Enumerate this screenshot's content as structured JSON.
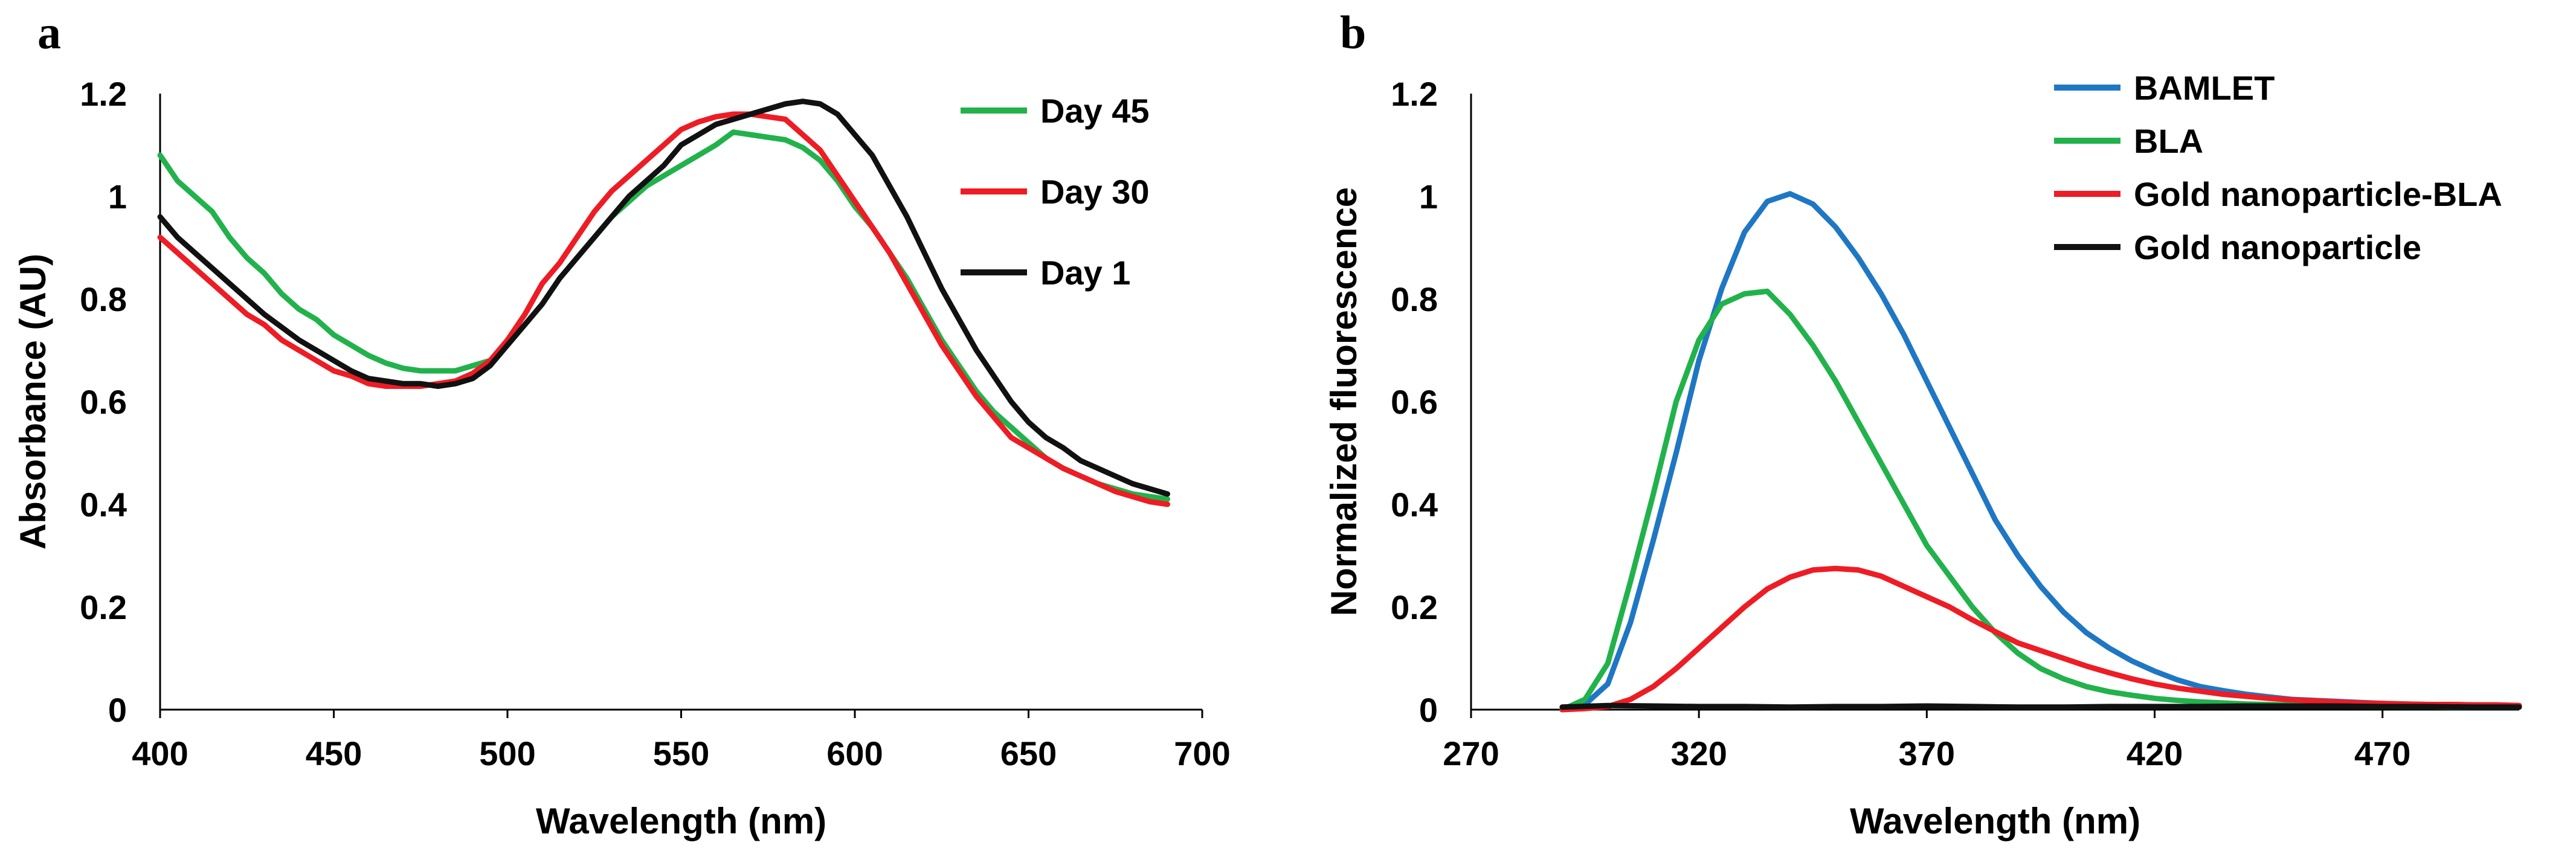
{
  "figure": {
    "panel_a_letter": "a",
    "panel_b_letter": "b"
  },
  "chart_data": [
    {
      "type": "line",
      "panel": "a",
      "title": "",
      "xlabel": "Wavelength (nm)",
      "ylabel": "Absorbance (AU)",
      "xlim": [
        400,
        700
      ],
      "ylim": [
        0,
        1.2
      ],
      "xticks": [
        400,
        450,
        500,
        550,
        600,
        650,
        700
      ],
      "yticks": [
        0,
        0.2,
        0.4,
        0.6,
        0.8,
        1,
        1.2
      ],
      "xtick_labels": [
        "400",
        "450",
        "500",
        "550",
        "600",
        "650",
        "700"
      ],
      "ytick_labels": [
        "0",
        "0.2",
        "0.4",
        "0.6",
        "0.8",
        "1",
        "1.2"
      ],
      "grid": false,
      "legend_position": "top-right",
      "series": [
        {
          "name": "Day 45",
          "color": "#22b24c",
          "x": [
            400,
            405,
            410,
            415,
            420,
            425,
            430,
            435,
            440,
            445,
            450,
            455,
            460,
            465,
            470,
            475,
            480,
            485,
            490,
            495,
            500,
            505,
            510,
            515,
            520,
            525,
            530,
            535,
            540,
            545,
            550,
            555,
            560,
            565,
            570,
            575,
            580,
            585,
            590,
            595,
            600,
            605,
            610,
            615,
            620,
            625,
            630,
            635,
            640,
            645,
            650,
            655,
            660,
            665,
            670,
            675,
            680,
            685,
            690
          ],
          "y": [
            1.08,
            1.03,
            1.0,
            0.97,
            0.92,
            0.88,
            0.85,
            0.81,
            0.78,
            0.76,
            0.73,
            0.71,
            0.69,
            0.675,
            0.665,
            0.66,
            0.66,
            0.66,
            0.67,
            0.68,
            0.71,
            0.75,
            0.79,
            0.84,
            0.88,
            0.92,
            0.96,
            0.99,
            1.02,
            1.04,
            1.06,
            1.08,
            1.1,
            1.125,
            1.12,
            1.115,
            1.11,
            1.095,
            1.07,
            1.03,
            0.98,
            0.94,
            0.89,
            0.84,
            0.78,
            0.72,
            0.67,
            0.62,
            0.58,
            0.55,
            0.52,
            0.49,
            0.47,
            0.455,
            0.44,
            0.43,
            0.42,
            0.415,
            0.41
          ]
        },
        {
          "name": "Day 30",
          "color": "#ee1c24",
          "x": [
            400,
            405,
            410,
            415,
            420,
            425,
            430,
            435,
            440,
            445,
            450,
            455,
            460,
            465,
            470,
            475,
            480,
            485,
            490,
            495,
            500,
            505,
            510,
            515,
            520,
            525,
            530,
            535,
            540,
            545,
            550,
            555,
            560,
            565,
            570,
            575,
            580,
            585,
            590,
            595,
            600,
            605,
            610,
            615,
            620,
            625,
            630,
            635,
            640,
            645,
            650,
            655,
            660,
            665,
            670,
            675,
            680,
            685,
            690
          ],
          "y": [
            0.92,
            0.89,
            0.86,
            0.83,
            0.8,
            0.77,
            0.75,
            0.72,
            0.7,
            0.68,
            0.66,
            0.65,
            0.635,
            0.63,
            0.63,
            0.63,
            0.635,
            0.64,
            0.655,
            0.68,
            0.72,
            0.77,
            0.83,
            0.87,
            0.92,
            0.97,
            1.01,
            1.04,
            1.07,
            1.1,
            1.13,
            1.145,
            1.155,
            1.16,
            1.16,
            1.155,
            1.15,
            1.12,
            1.09,
            1.04,
            0.99,
            0.94,
            0.89,
            0.83,
            0.77,
            0.71,
            0.66,
            0.61,
            0.57,
            0.53,
            0.51,
            0.49,
            0.47,
            0.455,
            0.44,
            0.425,
            0.415,
            0.405,
            0.4
          ]
        },
        {
          "name": "Day 1",
          "color": "#111111",
          "x": [
            400,
            405,
            410,
            415,
            420,
            425,
            430,
            435,
            440,
            445,
            450,
            455,
            460,
            465,
            470,
            475,
            480,
            485,
            490,
            495,
            500,
            505,
            510,
            515,
            520,
            525,
            530,
            535,
            540,
            545,
            550,
            555,
            560,
            565,
            570,
            575,
            580,
            585,
            590,
            595,
            600,
            605,
            610,
            615,
            620,
            625,
            630,
            635,
            640,
            645,
            650,
            655,
            660,
            665,
            670,
            675,
            680,
            685,
            690
          ],
          "y": [
            0.96,
            0.92,
            0.89,
            0.86,
            0.83,
            0.8,
            0.77,
            0.745,
            0.72,
            0.7,
            0.68,
            0.66,
            0.645,
            0.64,
            0.635,
            0.635,
            0.63,
            0.635,
            0.645,
            0.67,
            0.71,
            0.75,
            0.79,
            0.84,
            0.88,
            0.92,
            0.96,
            1.0,
            1.03,
            1.06,
            1.1,
            1.12,
            1.14,
            1.15,
            1.16,
            1.17,
            1.18,
            1.185,
            1.18,
            1.16,
            1.12,
            1.08,
            1.02,
            0.96,
            0.89,
            0.82,
            0.76,
            0.7,
            0.65,
            0.6,
            0.56,
            0.53,
            0.51,
            0.485,
            0.47,
            0.455,
            0.44,
            0.43,
            0.42
          ]
        }
      ]
    },
    {
      "type": "line",
      "panel": "b",
      "title": "",
      "xlabel": "Wavelength (nm)",
      "ylabel": "Normalized fluorescence",
      "xlim": [
        270,
        500
      ],
      "ylim": [
        0,
        1.2
      ],
      "xticks": [
        270,
        320,
        370,
        420,
        470
      ],
      "yticks": [
        0,
        0.2,
        0.4,
        0.6,
        0.8,
        1,
        1.2
      ],
      "xtick_labels": [
        "270",
        "320",
        "370",
        "420",
        "470"
      ],
      "ytick_labels": [
        "0",
        "0.2",
        "0.4",
        "0.6",
        "0.8",
        "1",
        "1.2"
      ],
      "grid": false,
      "legend_position": "top-right",
      "series": [
        {
          "name": "BAMLET",
          "color": "#1f77c4",
          "x": [
            290,
            295,
            300,
            305,
            310,
            315,
            320,
            325,
            330,
            335,
            340,
            345,
            350,
            355,
            360,
            365,
            370,
            375,
            380,
            385,
            390,
            395,
            400,
            405,
            410,
            415,
            420,
            425,
            430,
            435,
            440,
            445,
            450,
            455,
            460,
            465,
            470,
            475,
            480,
            485,
            490,
            495,
            500
          ],
          "y": [
            0.0,
            0.01,
            0.05,
            0.17,
            0.33,
            0.5,
            0.68,
            0.82,
            0.93,
            0.99,
            1.005,
            0.985,
            0.94,
            0.88,
            0.81,
            0.73,
            0.64,
            0.55,
            0.46,
            0.37,
            0.3,
            0.24,
            0.19,
            0.15,
            0.12,
            0.095,
            0.075,
            0.058,
            0.045,
            0.037,
            0.03,
            0.025,
            0.02,
            0.018,
            0.016,
            0.014,
            0.012,
            0.011,
            0.01,
            0.01,
            0.009,
            0.009,
            0.008
          ]
        },
        {
          "name": "BLA",
          "color": "#22b24c",
          "x": [
            290,
            295,
            300,
            305,
            310,
            315,
            320,
            325,
            330,
            335,
            340,
            345,
            350,
            355,
            360,
            365,
            370,
            375,
            380,
            385,
            390,
            395,
            400,
            405,
            410,
            415,
            420,
            425,
            430,
            435,
            440,
            445,
            450,
            455,
            460,
            465,
            470,
            475,
            480,
            485,
            490,
            495,
            500
          ],
          "y": [
            0.0,
            0.02,
            0.09,
            0.25,
            0.42,
            0.6,
            0.72,
            0.79,
            0.81,
            0.815,
            0.77,
            0.71,
            0.64,
            0.56,
            0.48,
            0.4,
            0.32,
            0.26,
            0.2,
            0.15,
            0.11,
            0.08,
            0.06,
            0.045,
            0.035,
            0.028,
            0.022,
            0.018,
            0.015,
            0.013,
            0.011,
            0.01,
            0.009,
            0.008,
            0.008,
            0.007,
            0.007,
            0.006,
            0.006,
            0.005,
            0.005,
            0.005,
            0.005
          ]
        },
        {
          "name": "Gold nanoparticle-BLA",
          "color": "#ee1c24",
          "x": [
            290,
            295,
            300,
            305,
            310,
            315,
            320,
            325,
            330,
            335,
            340,
            345,
            350,
            355,
            360,
            365,
            370,
            375,
            380,
            385,
            390,
            395,
            400,
            405,
            410,
            415,
            420,
            425,
            430,
            435,
            440,
            445,
            450,
            455,
            460,
            465,
            470,
            475,
            480,
            485,
            490,
            495,
            500
          ],
          "y": [
            0.0,
            0.002,
            0.006,
            0.02,
            0.045,
            0.08,
            0.12,
            0.16,
            0.2,
            0.235,
            0.258,
            0.272,
            0.275,
            0.272,
            0.26,
            0.24,
            0.22,
            0.2,
            0.175,
            0.152,
            0.13,
            0.115,
            0.1,
            0.085,
            0.072,
            0.06,
            0.05,
            0.042,
            0.036,
            0.03,
            0.026,
            0.022,
            0.019,
            0.017,
            0.015,
            0.013,
            0.012,
            0.011,
            0.01,
            0.01,
            0.009,
            0.009,
            0.008
          ]
        },
        {
          "name": "Gold nanoparticle",
          "color": "#111111",
          "x": [
            290,
            300,
            310,
            320,
            330,
            340,
            350,
            360,
            370,
            380,
            390,
            400,
            410,
            420,
            430,
            440,
            450,
            460,
            470,
            480,
            490,
            500
          ],
          "y": [
            0.005,
            0.008,
            0.007,
            0.006,
            0.006,
            0.005,
            0.006,
            0.006,
            0.007,
            0.006,
            0.005,
            0.005,
            0.006,
            0.006,
            0.006,
            0.007,
            0.007,
            0.007,
            0.006,
            0.006,
            0.005,
            0.005
          ]
        }
      ]
    }
  ]
}
